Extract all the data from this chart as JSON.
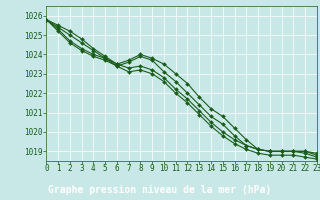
{
  "title": "Graphe pression niveau de la mer (hPa)",
  "background_color": "#c8e8e8",
  "grid_color": "#b8d8d8",
  "line_color": "#1a5c1a",
  "xlim": [
    0,
    23
  ],
  "ylim": [
    1018.5,
    1026.5
  ],
  "yticks": [
    1019,
    1020,
    1021,
    1022,
    1023,
    1024,
    1025,
    1026
  ],
  "xticks": [
    0,
    1,
    2,
    3,
    4,
    5,
    6,
    7,
    8,
    9,
    10,
    11,
    12,
    13,
    14,
    15,
    16,
    17,
    18,
    19,
    20,
    21,
    22,
    23
  ],
  "series": [
    [
      1025.8,
      1025.5,
      1025.2,
      1024.8,
      1024.3,
      1023.9,
      1023.5,
      1023.7,
      1024.0,
      1023.8,
      1023.5,
      1023.0,
      1022.5,
      1021.8,
      1021.2,
      1020.8,
      1020.2,
      1019.6,
      1019.1,
      1019.0,
      1019.0,
      1019.0,
      1019.0,
      1018.8
    ],
    [
      1025.8,
      1025.4,
      1025.0,
      1024.6,
      1024.2,
      1023.8,
      1023.4,
      1023.6,
      1023.9,
      1023.7,
      1023.1,
      1022.6,
      1022.0,
      1021.4,
      1020.8,
      1020.4,
      1019.8,
      1019.3,
      1019.1,
      1019.0,
      1019.0,
      1019.0,
      1019.0,
      1018.9
    ],
    [
      1025.8,
      1025.3,
      1024.7,
      1024.3,
      1024.0,
      1023.8,
      1023.5,
      1023.3,
      1023.4,
      1023.2,
      1022.8,
      1022.2,
      1021.7,
      1021.1,
      1020.5,
      1020.0,
      1019.6,
      1019.3,
      1019.1,
      1019.0,
      1019.0,
      1019.0,
      1018.9,
      1018.7
    ],
    [
      1025.8,
      1025.2,
      1024.6,
      1024.2,
      1023.9,
      1023.7,
      1023.4,
      1023.1,
      1023.2,
      1023.0,
      1022.6,
      1022.0,
      1021.5,
      1020.9,
      1020.3,
      1019.8,
      1019.4,
      1019.1,
      1018.9,
      1018.8,
      1018.8,
      1018.8,
      1018.7,
      1018.6
    ]
  ],
  "marker": "D",
  "marker_size": 2.0,
  "line_width": 0.8,
  "title_fontsize": 7,
  "tick_fontsize": 5.5,
  "tick_color": "#1a5c1a",
  "title_bg": "#1a5c1a",
  "title_fg": "#ffffff"
}
